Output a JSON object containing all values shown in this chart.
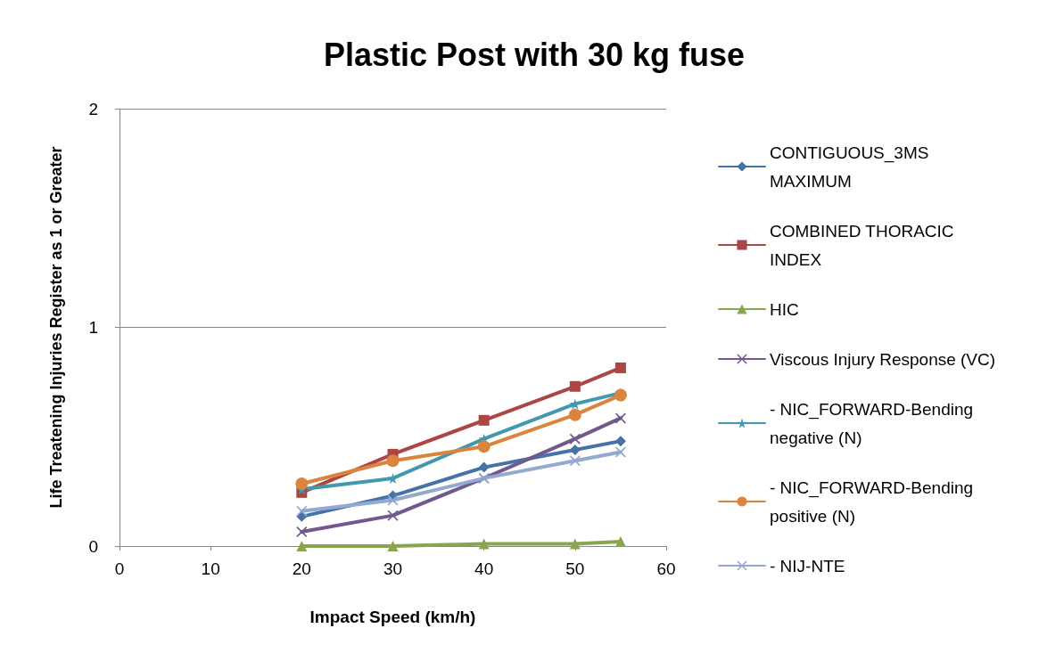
{
  "chart_data": {
    "type": "line",
    "title": "Plastic Post with 30 kg fuse",
    "xlabel": "Impact Speed (km/h)",
    "ylabel": "Life Treatening Injuries Register as 1 or Greater",
    "x": [
      20,
      30,
      40,
      50,
      55
    ],
    "xlim": [
      0,
      60
    ],
    "xticks": [
      0,
      10,
      20,
      30,
      40,
      50,
      60
    ],
    "ylim": [
      0,
      2
    ],
    "yticks": [
      0,
      1,
      2
    ],
    "grid": "y",
    "legend": "right",
    "series": [
      {
        "name": "CONTIGUOUS_3MS MAXIMUM",
        "color": "#4572a7",
        "marker": "diamond",
        "values": [
          0.135,
          0.23,
          0.36,
          0.44,
          0.48
        ]
      },
      {
        "name": "COMBINED THORACIC INDEX",
        "color": "#aa4643",
        "marker": "square",
        "values": [
          0.245,
          0.42,
          0.575,
          0.73,
          0.815
        ]
      },
      {
        "name": "HIC",
        "color": "#89a54e",
        "marker": "triangle",
        "values": [
          0,
          0,
          0.01,
          0.01,
          0.02
        ]
      },
      {
        "name": "Viscous Injury Response (VC)",
        "color": "#71588f",
        "marker": "cross",
        "values": [
          0.065,
          0.14,
          0.31,
          0.49,
          0.585
        ]
      },
      {
        "name": "- NIC_FORWARD-Bending negative (N)",
        "color": "#4198af",
        "marker": "star",
        "values": [
          0.26,
          0.31,
          0.49,
          0.65,
          0.7
        ]
      },
      {
        "name": "- NIC_FORWARD-Bending positive (N)",
        "color": "#db843d",
        "marker": "circle",
        "values": [
          0.285,
          0.39,
          0.455,
          0.6,
          0.69
        ]
      },
      {
        "name": "- NIJ-NTE",
        "color": "#93a9cf",
        "marker": "cross",
        "values": [
          0.16,
          0.21,
          0.31,
          0.39,
          0.43
        ]
      }
    ]
  }
}
